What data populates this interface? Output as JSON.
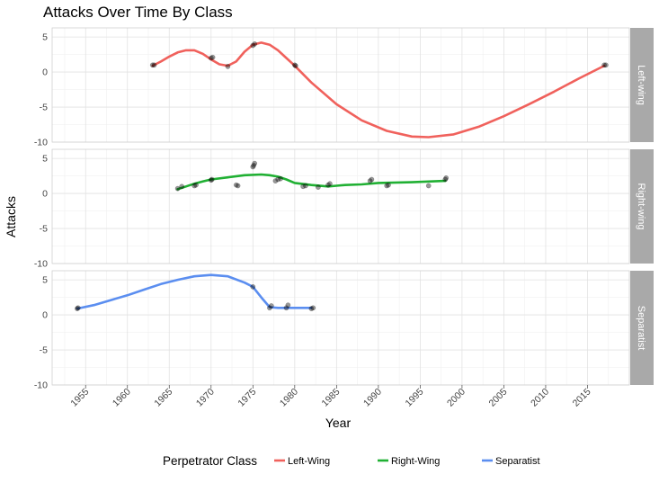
{
  "chart_data": {
    "type": "line",
    "title": "Attacks Over Time By Class",
    "xlabel": "Year",
    "ylabel": "Attacks",
    "xlim": [
      1951,
      2020
    ],
    "ylim": [
      -10,
      6.3
    ],
    "x_ticks": [
      1955,
      1960,
      1965,
      1970,
      1975,
      1980,
      1985,
      1990,
      1995,
      2000,
      2005,
      2010,
      2015
    ],
    "y_ticks": [
      -10,
      -5,
      0,
      5
    ],
    "grid": true,
    "legend": {
      "title": "Perpetrator Class",
      "position": "bottom",
      "entries": [
        "Left-Wing",
        "Right-Wing",
        "Separatist"
      ]
    },
    "panels": [
      {
        "strip": "Left-wing",
        "color": "#f0615c",
        "points": [
          [
            1963,
            1
          ],
          [
            1963.2,
            1
          ],
          [
            1970,
            2
          ],
          [
            1970.2,
            2.1
          ],
          [
            1972,
            0.8
          ],
          [
            1975,
            3.8
          ],
          [
            1975.2,
            4
          ],
          [
            1980,
            1
          ],
          [
            1980.1,
            0.9
          ],
          [
            2017,
            1
          ],
          [
            2017.2,
            1
          ]
        ],
        "smooth": [
          [
            1963,
            0.9
          ],
          [
            1964,
            1.5
          ],
          [
            1965,
            2.2
          ],
          [
            1966,
            2.8
          ],
          [
            1967,
            3.1
          ],
          [
            1968,
            3.1
          ],
          [
            1969,
            2.6
          ],
          [
            1970,
            1.8
          ],
          [
            1971,
            1.1
          ],
          [
            1972,
            0.9
          ],
          [
            1973,
            1.5
          ],
          [
            1974,
            2.9
          ],
          [
            1975,
            3.9
          ],
          [
            1976,
            4.2
          ],
          [
            1977,
            3.9
          ],
          [
            1978,
            3.1
          ],
          [
            1979,
            2
          ],
          [
            1980,
            0.9
          ],
          [
            1982,
            -1.5
          ],
          [
            1985,
            -4.6
          ],
          [
            1988,
            -6.9
          ],
          [
            1991,
            -8.4
          ],
          [
            1994,
            -9.2
          ],
          [
            1996,
            -9.3
          ],
          [
            1999,
            -8.9
          ],
          [
            2002,
            -7.8
          ],
          [
            2005,
            -6.3
          ],
          [
            2008,
            -4.6
          ],
          [
            2011,
            -2.8
          ],
          [
            2014,
            -0.9
          ],
          [
            2017,
            0.9
          ]
        ]
      },
      {
        "strip": "Right-wing",
        "color": "#20b033",
        "points": [
          [
            1966,
            0.7
          ],
          [
            1966.5,
            1
          ],
          [
            1968,
            1.1
          ],
          [
            1968.2,
            1.2
          ],
          [
            1970,
            1.9
          ],
          [
            1970.1,
            2
          ],
          [
            1973,
            1.2
          ],
          [
            1973.2,
            1.1
          ],
          [
            1975,
            3.8
          ],
          [
            1975.1,
            4
          ],
          [
            1975.2,
            4.3
          ],
          [
            1977.7,
            1.8
          ],
          [
            1978,
            2
          ],
          [
            1978.3,
            2.1
          ],
          [
            1981,
            1
          ],
          [
            1981.3,
            1.1
          ],
          [
            1982.8,
            0.9
          ],
          [
            1984,
            1.2
          ],
          [
            1984.2,
            1.4
          ],
          [
            1989,
            1.8
          ],
          [
            1989.2,
            2
          ],
          [
            1991,
            1.1
          ],
          [
            1991.2,
            1.2
          ],
          [
            1996,
            1.1
          ],
          [
            1998,
            2
          ],
          [
            1998.1,
            2.2
          ]
        ],
        "smooth": [
          [
            1966,
            0.6
          ],
          [
            1967,
            1
          ],
          [
            1968,
            1.4
          ],
          [
            1969,
            1.7
          ],
          [
            1970,
            2
          ],
          [
            1972,
            2.3
          ],
          [
            1974,
            2.6
          ],
          [
            1976,
            2.7
          ],
          [
            1977,
            2.6
          ],
          [
            1978,
            2.4
          ],
          [
            1979,
            2
          ],
          [
            1980,
            1.5
          ],
          [
            1982,
            1.2
          ],
          [
            1984,
            1
          ],
          [
            1985,
            1.1
          ],
          [
            1986,
            1.2
          ],
          [
            1988,
            1.3
          ],
          [
            1990,
            1.5
          ],
          [
            1994,
            1.6
          ],
          [
            1998,
            1.8
          ]
        ]
      },
      {
        "strip": "Separatist",
        "color": "#5b8ef0",
        "points": [
          [
            1954,
            0.9
          ],
          [
            1954.1,
            1
          ],
          [
            1975,
            4
          ],
          [
            1977,
            1
          ],
          [
            1977.2,
            1.3
          ],
          [
            1979,
            1
          ],
          [
            1979.2,
            1.4
          ],
          [
            1982,
            0.9
          ],
          [
            1982.2,
            1
          ]
        ],
        "smooth": [
          [
            1954,
            0.9
          ],
          [
            1956,
            1.4
          ],
          [
            1958,
            2.1
          ],
          [
            1960,
            2.8
          ],
          [
            1962,
            3.6
          ],
          [
            1964,
            4.4
          ],
          [
            1966,
            5
          ],
          [
            1968,
            5.5
          ],
          [
            1970,
            5.7
          ],
          [
            1972,
            5.5
          ],
          [
            1974,
            4.6
          ],
          [
            1975,
            4
          ],
          [
            1976,
            2.5
          ],
          [
            1977,
            1.1
          ],
          [
            1978,
            1
          ],
          [
            1980,
            1
          ],
          [
            1982,
            1
          ]
        ]
      }
    ]
  }
}
